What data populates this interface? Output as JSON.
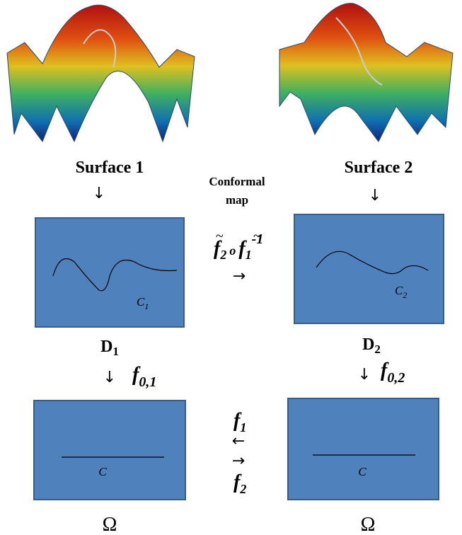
{
  "surfaces": [
    {
      "label": "Surface 1"
    },
    {
      "label": "Surface 2"
    }
  ],
  "conformal_map": {
    "label": [
      "Conformal",
      "map"
    ],
    "formula": {
      "left": "f",
      "left_sub": "2",
      "op": "o",
      "right": "f",
      "right_sub": "1",
      "right_sup": "-1"
    }
  },
  "domains": [
    {
      "name": "D",
      "sub": "1",
      "curve": "C",
      "curve_sub": "1"
    },
    {
      "name": "D",
      "sub": "2",
      "curve": "C",
      "curve_sub": "2"
    }
  ],
  "maps": [
    {
      "name": "f",
      "sub": "0,1"
    },
    {
      "name": "f",
      "sub": "0,2"
    }
  ],
  "omegas": [
    {
      "name": "Ω",
      "curve": "C"
    },
    {
      "name": "Ω",
      "curve": "C"
    }
  ],
  "between": {
    "top": {
      "name": "f",
      "sub": "1"
    },
    "bottom": {
      "name": "f",
      "sub": "2"
    }
  }
}
